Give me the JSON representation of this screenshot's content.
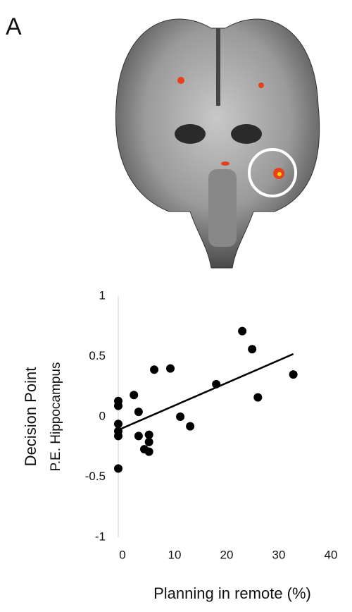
{
  "panel_label": "A",
  "chart_data": {
    "type": "scatter",
    "xlabel": "Planning in remote (%)",
    "ylabel": "Decision Point",
    "ylabel2": "P.E. Hippocampus",
    "xlim": [
      0,
      44
    ],
    "ylim": [
      -1,
      1
    ],
    "xticks": [
      0,
      10,
      20,
      30,
      40
    ],
    "yticks": [
      1,
      0.5,
      0,
      -0.5,
      -1
    ],
    "color": "#000000",
    "x": [
      0,
      0,
      0,
      0,
      0,
      0,
      3.0,
      3.9,
      3.9,
      5.0,
      5.9,
      5.9,
      5.9,
      6.9,
      10.0,
      11.9,
      13.8,
      18.8,
      23.8,
      25.7,
      26.8,
      33.6
    ],
    "values": [
      0.13,
      0.09,
      -0.06,
      -0.12,
      -0.16,
      -0.43,
      0.18,
      0.04,
      -0.16,
      -0.27,
      -0.15,
      -0.21,
      -0.29,
      0.39,
      0.4,
      0.0,
      -0.08,
      0.27,
      0.71,
      0.56,
      0.16,
      0.35
    ],
    "trendline": {
      "x": [
        0,
        33.6
      ],
      "y": [
        -0.11,
        0.52
      ]
    }
  }
}
